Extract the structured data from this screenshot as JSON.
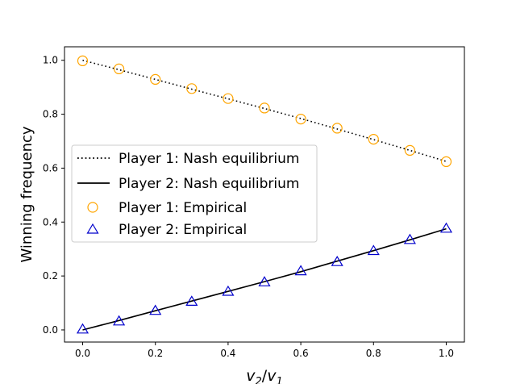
{
  "chart_data": {
    "type": "line",
    "title": "",
    "xlabel": "v2/v1",
    "xlabel_parts": {
      "num": "v",
      "num_sub": "2",
      "slash": "/",
      "den": "v",
      "den_sub": "1"
    },
    "ylabel": "Winning frequency",
    "xlim": [
      -0.05,
      1.05
    ],
    "ylim": [
      -0.045,
      1.05
    ],
    "xticks": [
      0.0,
      0.2,
      0.4,
      0.6,
      0.8,
      1.0
    ],
    "xtick_labels": [
      "0.0",
      "0.2",
      "0.4",
      "0.6",
      "0.8",
      "1.0"
    ],
    "yticks": [
      0.0,
      0.2,
      0.4,
      0.6,
      0.8,
      1.0
    ],
    "ytick_labels": [
      "0.0",
      "0.2",
      "0.4",
      "0.6",
      "0.8",
      "1.0"
    ],
    "grid": false,
    "legend_position": "center-left",
    "series": [
      {
        "name": "Player 1: Nash equilibrium",
        "kind": "line",
        "style": "dotted",
        "color": "#000000",
        "x": [
          0.0,
          0.1,
          0.2,
          0.3,
          0.4,
          0.5,
          0.6,
          0.7,
          0.8,
          0.9,
          1.0
        ],
        "y": [
          1.0,
          0.965,
          0.929,
          0.893,
          0.857,
          0.821,
          0.784,
          0.745,
          0.706,
          0.666,
          0.625
        ]
      },
      {
        "name": "Player 2: Nash equilibrium",
        "kind": "line",
        "style": "solid",
        "color": "#000000",
        "x": [
          0.0,
          0.1,
          0.2,
          0.3,
          0.4,
          0.5,
          0.6,
          0.7,
          0.8,
          0.9,
          1.0
        ],
        "y": [
          0.0,
          0.035,
          0.071,
          0.107,
          0.143,
          0.179,
          0.216,
          0.255,
          0.294,
          0.334,
          0.375
        ]
      },
      {
        "name": "Player 1: Empirical",
        "kind": "scatter",
        "marker": "circle",
        "color": "#ffa500",
        "x": [
          0.0,
          0.1,
          0.2,
          0.3,
          0.4,
          0.5,
          0.6,
          0.7,
          0.8,
          0.9,
          1.0
        ],
        "y": [
          0.998,
          0.968,
          0.929,
          0.895,
          0.858,
          0.823,
          0.782,
          0.748,
          0.707,
          0.666,
          0.624
        ]
      },
      {
        "name": "Player 2: Empirical",
        "kind": "scatter",
        "marker": "triangle",
        "color": "#0000cc",
        "x": [
          0.0,
          0.1,
          0.2,
          0.3,
          0.4,
          0.5,
          0.6,
          0.7,
          0.8,
          0.9,
          1.0
        ],
        "y": [
          0.002,
          0.032,
          0.071,
          0.105,
          0.142,
          0.177,
          0.218,
          0.252,
          0.293,
          0.334,
          0.376
        ]
      }
    ]
  }
}
